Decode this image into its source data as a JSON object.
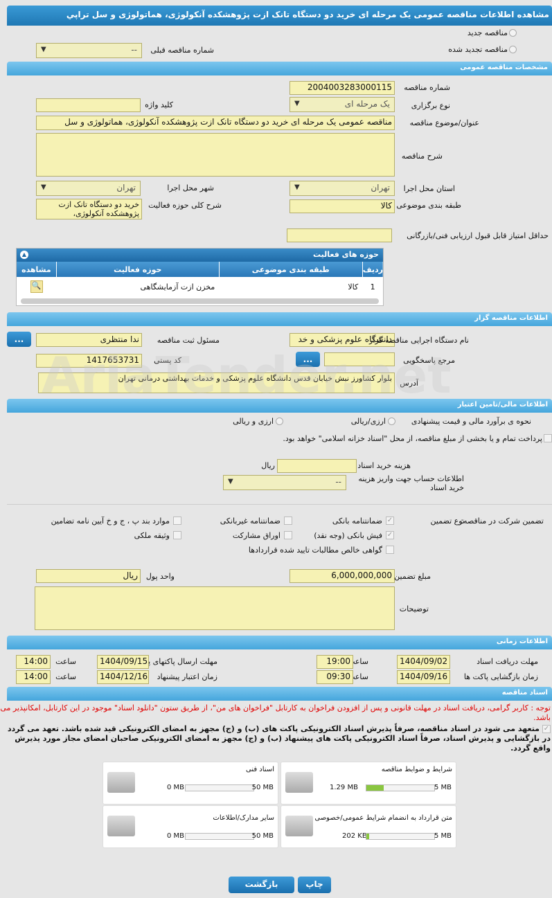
{
  "title": "مشاهده اطلاعات مناقصه عمومی یک مرحله ای خرید دو دستگاه تانک ازت پژوهشکده آنکولوژی، هماتولوژی و سل تراپي",
  "top": {
    "new_tender": "مناقصه جدید",
    "renewed_tender": "مناقصه تجدید شده",
    "prev_number_label": "شماره مناقصه قبلی",
    "prev_number_value": "--"
  },
  "general": {
    "section": "مشخصات مناقصه عمومی",
    "number_label": "شماره مناقصه",
    "number": "2004003283000115",
    "keyword_label": "کلید واژه",
    "keyword": "",
    "type_label": "نوع برگزاری",
    "type": "یک مرحله ای",
    "subject_label": "عنوان/موضوع مناقصه",
    "subject": "مناقصه عمومی یک مرحله ای خرید دو دستگاه تانک ازت پژوهشکده آنکولوژی، هماتولوژی و سل",
    "desc_label": "شرح مناقصه",
    "desc": "",
    "province_label": "استان محل اجرا",
    "province": "تهران",
    "city_label": "شهر محل اجرا",
    "city": "تهران",
    "category_label": "طبقه بندی موضوعی",
    "category": "کالا",
    "activity_label": "شرح کلی حوزه فعالیت",
    "activity": "خرید دو دستگاه تانک ازت پژوهشکده آنکولوژی،",
    "min_score_label": "حداقل امتیاز قابل قبول ارزیابی فنی/بازرگانی",
    "min_score": ""
  },
  "activities": {
    "title": "حوزه های فعالیت",
    "columns": [
      "ردیف",
      "طبقه بندی موضوعی",
      "حوزه فعالیت",
      "مشاهده"
    ],
    "rows": [
      {
        "n": "1",
        "category": "کالا",
        "field": "مخزن ازت آزمایشگاهی"
      }
    ]
  },
  "organizer": {
    "section": "اطلاعات مناقصه گزار",
    "org_label": "نام دستگاه اجرایی مناقصه گزار",
    "org": "دانشگاه علوم پزشکی و خد",
    "resp_label": "مسئول ثبت مناقصه",
    "resp": "ندا منتظری",
    "ref_label": "مرجع پاسخگویی",
    "ref": "",
    "postal_label": "کد پستی",
    "postal": "1417653731",
    "address_label": "آدرس",
    "address": "بلوار کشاورز نبش خیابان قدس دانشگاه علوم پزشکی و خدمات بهداشتی درمانی تهران",
    "dots": "..."
  },
  "watermark": "AriaTender.net",
  "finance": {
    "section": "اطلاعات مالی/تامین اعتبار",
    "estimate_label": "نحوه ی برآورد مالی و قیمت پیشنهادی",
    "opt1": "ارزی/ریالی",
    "opt2": "ارزی و ریالی",
    "treasury": "پرداخت تمام و یا بخشی از مبلغ مناقصه، از محل \"اسناد خزانه اسلامی\" خواهد بود.",
    "doc_cost_label": "هزینه خرید اسناد",
    "doc_cost": "",
    "rial": "ریال",
    "account_label": "اطلاعات حساب جهت واریز هزینه خرید اسناد",
    "account": "--"
  },
  "guarantee": {
    "label": "تضمین شرکت در مناقصه:",
    "type_label": "نوع تضمین",
    "items": [
      {
        "t": "ضمانتنامه بانکی",
        "c": true
      },
      {
        "t": "ضمانتنامه غیربانکی",
        "c": false
      },
      {
        "t": "موارد بند پ ، ج و خ آیین نامه تضامین",
        "c": false
      },
      {
        "t": "فیش بانکی (وجه نقد)",
        "c": true
      },
      {
        "t": "اوراق مشارکت",
        "c": false
      },
      {
        "t": "وثیقه ملکی",
        "c": false
      },
      {
        "t": "گواهی خالص مطالبات تایید شده قراردادها",
        "c": false
      }
    ],
    "amount_label": "مبلغ تضمین",
    "amount": "6,000,000,000",
    "currency_label": "واحد پول",
    "currency": "ریال",
    "notes_label": "توضیحات",
    "notes": ""
  },
  "timing": {
    "section": "اطلاعات زمانی",
    "time_label": "ساعت",
    "doc_deadline_label": "مهلت دریافت اسناد",
    "doc_deadline": "1404/09/02",
    "doc_deadline_time": "19:00",
    "submit_label": "مهلت ارسال پاکتهای پیشنهاد",
    "submit": "1404/09/15",
    "submit_time": "14:00",
    "open_label": "زمان بازگشایی پاکت ها",
    "open": "1404/09/16",
    "open_time": "09:30",
    "valid_label": "زمان اعتبار پیشنهاد",
    "valid": "1404/12/16",
    "valid_time": "14:00"
  },
  "documents": {
    "section": "اسناد مناقصه",
    "notice": "توجه : کاربر گرامی، دریافت اسناد در مهلت قانونی و پس از افزودن فراخوان به کارتابل \"فراخوان های من\"، از طریق ستون \"دانلود اسناد\" موجود در این کارتابل، امکانپذیر می باشد.",
    "commitment": "متعهد می شود در اسناد مناقصه، صرفاً پذیرش اسناد الکترونیکی پاکت های (ب) و (ج) مجهز به امضای الکترونیکی قید شده باشد. تعهد می گردد در بازگشایی و پذیرش اسناد، صرفاً اسناد الکترونیکی پاکت های پیشنهاد (ب) و (ج) مجهز به امضای الکترونیکی صاحبان امضای مجاز مورد پذیرش واقع گردد.",
    "files": [
      {
        "name": "شرایط و ضوابط مناقصه",
        "size": "1.29 MB",
        "max": "5 MB",
        "fill": 0.26
      },
      {
        "name": "اسناد فنی",
        "size": "0 MB",
        "max": "50 MB",
        "fill": 0
      },
      {
        "name": "متن قرارداد به انضمام شرایط عمومی/خصوصی",
        "size": "202 KB",
        "max": "5 MB",
        "fill": 0.04
      },
      {
        "name": "سایر مدارک/اطلاعات",
        "size": "0 MB",
        "max": "50 MB",
        "fill": 0
      }
    ]
  },
  "buttons": {
    "print": "چاپ",
    "back": "بازگشت"
  }
}
